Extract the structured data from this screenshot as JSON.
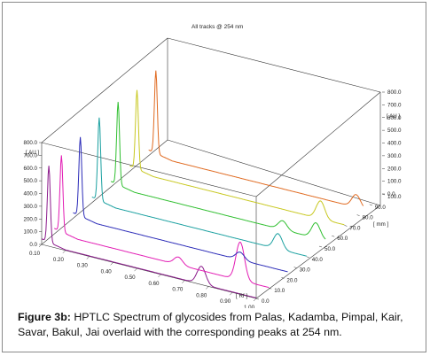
{
  "caption": {
    "label": "Figure 3b:",
    "text": "HPTLC Spectrum of glycosides from Palas, Kadamba, Pimpal, Kair, Savar, Bakul, Jai overlaid with the corresponding peaks at 254 nm."
  },
  "chart_data": {
    "type": "line",
    "title": "All tracks @ 254 nm",
    "rf_axis": {
      "label": "[ Rf ]",
      "range": [
        0.1,
        1.0
      ],
      "ticks": [
        "0.10",
        "0.20",
        "0.30",
        "0.40",
        "0.50",
        "0.60",
        "0.70",
        "0.80",
        "0.90",
        "1.00"
      ]
    },
    "au_axis": {
      "label": "[ AU ]",
      "range": [
        0,
        800
      ],
      "ticks": [
        "0.0",
        "100.0",
        "200.0",
        "300.0",
        "400.0",
        "500.0",
        "600.0",
        "700.0",
        "800.0"
      ]
    },
    "mm_axis": {
      "label": "[ mm ]",
      "range": [
        0,
        100
      ],
      "ticks": [
        "0.0",
        "10.0",
        "20.0",
        "30.0",
        "40.0",
        "50.0",
        "60.0",
        "70.0",
        "80.0",
        "90.0",
        "100.0"
      ]
    },
    "grid": false,
    "series": [
      {
        "color": "#8b1a8b",
        "track_mm": 0,
        "peaks": [
          [
            0.13,
            600
          ],
          [
            0.77,
            140
          ]
        ]
      },
      {
        "color": "#e21cb4",
        "track_mm": 10,
        "peaks": [
          [
            0.13,
            600
          ],
          [
            0.62,
            60
          ],
          [
            0.88,
            300
          ]
        ]
      },
      {
        "color": "#2b2bb8",
        "track_mm": 25,
        "peaks": [
          [
            0.13,
            620
          ],
          [
            0.8,
            60
          ]
        ]
      },
      {
        "color": "#1aa0a0",
        "track_mm": 40,
        "peaks": [
          [
            0.13,
            650
          ],
          [
            0.88,
            120
          ]
        ]
      },
      {
        "color": "#2fbf2f",
        "track_mm": 55,
        "peaks": [
          [
            0.13,
            650
          ],
          [
            0.82,
            70
          ],
          [
            0.96,
            120
          ]
        ]
      },
      {
        "color": "#c8c820",
        "track_mm": 70,
        "peaks": [
          [
            0.13,
            620
          ],
          [
            0.9,
            140
          ]
        ]
      },
      {
        "color": "#e06a20",
        "track_mm": 85,
        "peaks": [
          [
            0.13,
            650
          ],
          [
            0.97,
            100
          ]
        ]
      }
    ]
  }
}
